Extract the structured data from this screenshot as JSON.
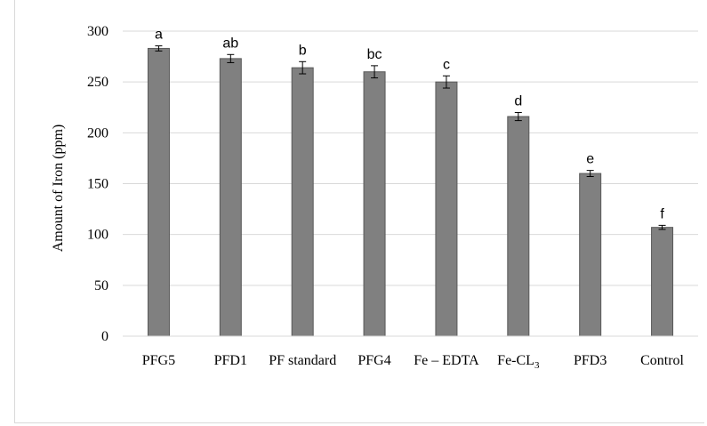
{
  "chart_data": {
    "type": "bar",
    "title": "",
    "xlabel": "",
    "ylabel": "Amount of Iron (ppm)",
    "ylim": [
      0,
      300
    ],
    "yticks": [
      0,
      50,
      100,
      150,
      200,
      250,
      300
    ],
    "grid": "horizontal",
    "categories": [
      "PFG5",
      "PFD1",
      "PF standard",
      "PFG4",
      "Fe – EDTA",
      "Fe-CL3",
      "PFD3",
      "Control"
    ],
    "values": [
      283,
      273,
      264,
      260,
      250,
      216,
      160,
      107
    ],
    "errors": [
      2.5,
      4,
      6,
      6,
      6,
      4,
      3,
      2
    ],
    "significance_labels": [
      "a",
      "ab",
      "b",
      "bc",
      "c",
      "d",
      "e",
      "f"
    ],
    "bar_color": "#808080",
    "bar_edge_color": "#595959",
    "grid_color": "#d9d9d9"
  }
}
